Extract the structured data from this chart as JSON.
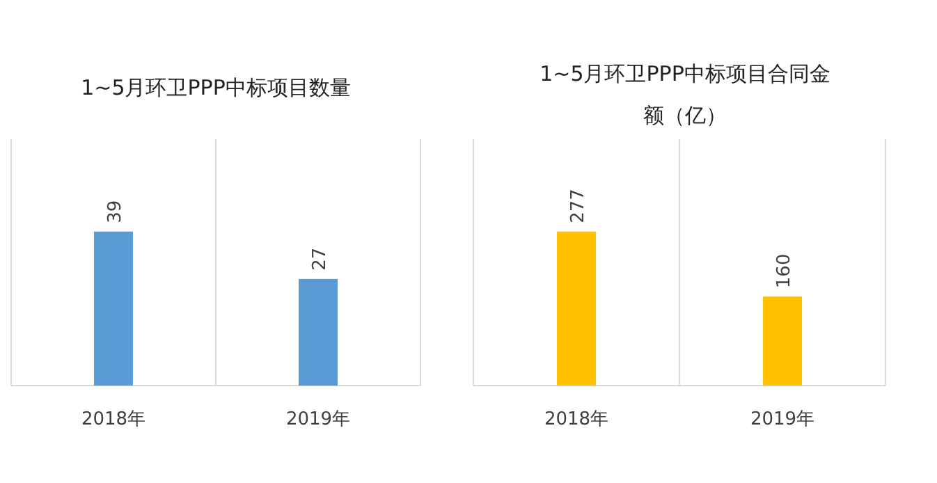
{
  "chart_data": [
    {
      "type": "bar",
      "title": "1~5月环卫PPP中标项目数量",
      "categories": [
        "2018年",
        "2019年"
      ],
      "values": [
        39,
        27
      ],
      "color": "#5b9bd5",
      "data_labels": true,
      "grid": "x"
    },
    {
      "type": "bar",
      "title": "1~5月环卫PPP中标项目合同金额（亿）",
      "categories": [
        "2018年",
        "2019年"
      ],
      "values": [
        277,
        160
      ],
      "color": "#ffc000",
      "data_labels": true,
      "grid": "x"
    }
  ]
}
